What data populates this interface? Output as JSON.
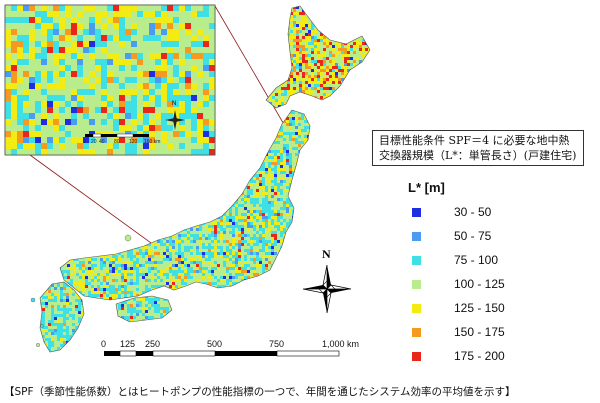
{
  "legend": {
    "title_line1": "目標性能条件 SPF＝4 に必要な地中熱",
    "title_line2": "交換器規模（L*：単管長さ）(戸建住宅)",
    "heading": "L* [m]",
    "items": [
      {
        "label": "30 - 50",
        "color": "#1f2ee0"
      },
      {
        "label": "50 - 75",
        "color": "#4a9cf2"
      },
      {
        "label": "75 - 100",
        "color": "#3fdfe6"
      },
      {
        "label": "100 - 125",
        "color": "#b8ec8c"
      },
      {
        "label": "125 - 150",
        "color": "#f2ec12"
      },
      {
        "label": "150 - 175",
        "color": "#f59a1e"
      },
      {
        "label": "175 - 200",
        "color": "#e8261a"
      }
    ]
  },
  "scale_bar": {
    "labels": [
      "0",
      "125",
      "250",
      "500",
      "750",
      "1,000 km"
    ]
  },
  "compass": {
    "north": "N"
  },
  "inset": {
    "compass_north": "N",
    "scale_labels": [
      "0",
      "20",
      "40",
      "80",
      "120",
      "160 km"
    ]
  },
  "caption": "【SPF（季節性能係数）とはヒートポンプの性能指標の一つで、年間を通じたシステム効率の平均値を示す】"
}
